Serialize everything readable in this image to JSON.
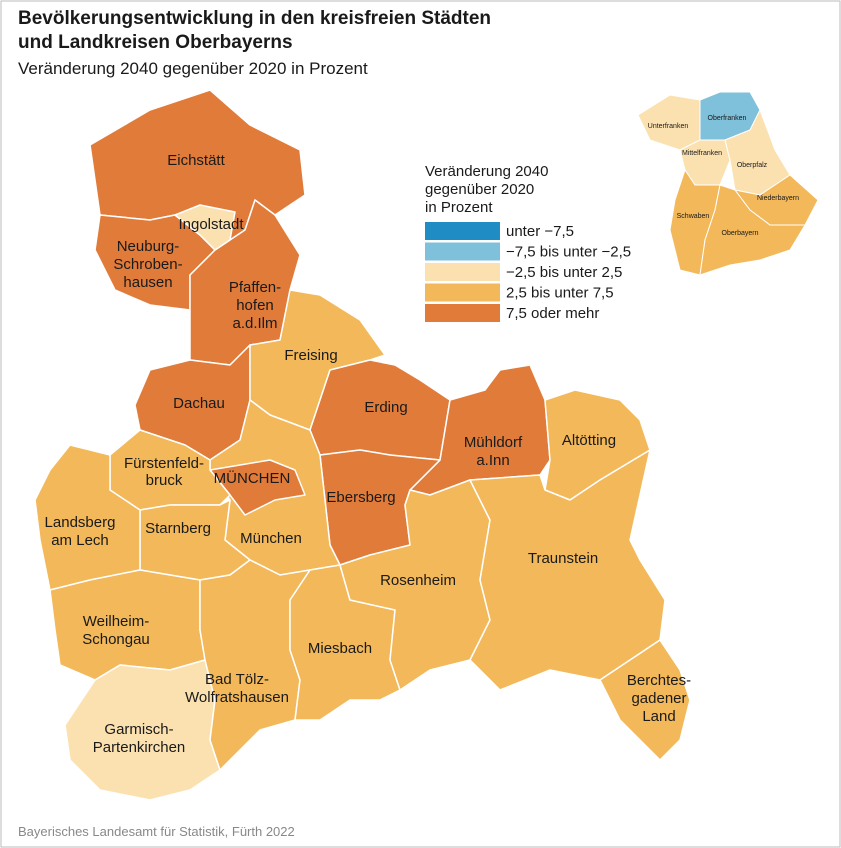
{
  "header": {
    "title": [
      "Bevölkerungsentwicklung in den kreisfreien Städten",
      "und Landkreisen Oberbayerns"
    ],
    "subtitle": "Veränderung 2040 gegenüber 2020 in Prozent"
  },
  "legend": {
    "title": [
      "Veränderung 2040",
      "gegenüber 2020",
      "in Prozent"
    ],
    "items": [
      {
        "label": "unter  −7,5",
        "color": "#1f8cc4"
      },
      {
        "label": "−7,5 bis unter −2,5",
        "color": "#7fc0da"
      },
      {
        "label": "−2,5 bis unter  2,5",
        "color": "#fbe1b0"
      },
      {
        "label": "2,5 bis unter  7,5",
        "color": "#f2b85a"
      },
      {
        "label": "7,5 oder mehr",
        "color": "#e07b3a"
      }
    ]
  },
  "regions": [
    {
      "label": [
        "Eichstätt"
      ],
      "class": 4
    },
    {
      "label": [
        "Neuburg-",
        "Schroben-",
        "hausen"
      ],
      "class": 4
    },
    {
      "label": [
        "Pfaffen-",
        "hofen",
        "a.d.Ilm"
      ],
      "class": 4
    },
    {
      "label": [
        "Ingolstadt"
      ],
      "class": 2
    },
    {
      "label": [
        "Dachau"
      ],
      "class": 4
    },
    {
      "label": [
        "Freising"
      ],
      "class": 3
    },
    {
      "label": [
        "Erding"
      ],
      "class": 4
    },
    {
      "label": [
        "Mühldorf",
        "a.Inn"
      ],
      "class": 4
    },
    {
      "label": [
        "Altötting"
      ],
      "class": 3
    },
    {
      "label": [
        "Ebersberg"
      ],
      "class": 4
    },
    {
      "label": [
        "München"
      ],
      "class": 3
    },
    {
      "label": [
        "MÜNCHEN"
      ],
      "class": 4
    },
    {
      "label": [
        "Fürstenfeld-",
        "bruck"
      ],
      "class": 3
    },
    {
      "label": [
        "Starnberg"
      ],
      "class": 3
    },
    {
      "label": [
        "Landsberg",
        "am Lech"
      ],
      "class": 3
    },
    {
      "label": [
        "Weilheim-",
        "Schongau"
      ],
      "class": 3
    },
    {
      "label": [
        "Garmisch-",
        "Partenkirchen"
      ],
      "class": 2
    },
    {
      "label": [
        "Bad Tölz-",
        "Wolfratshausen"
      ],
      "class": 3
    },
    {
      "label": [
        "Miesbach"
      ],
      "class": 3
    },
    {
      "label": [
        "Rosenheim"
      ],
      "class": 3
    },
    {
      "label": [
        "Traunstein"
      ],
      "class": 3
    },
    {
      "label": [
        "Berchtes-",
        "gadener",
        "Land"
      ],
      "class": 3
    }
  ],
  "inset": [
    {
      "label": "Unterfranken",
      "class": 2
    },
    {
      "label": "Oberfranken",
      "class": 1
    },
    {
      "label": "Mittelfranken",
      "class": 2
    },
    {
      "label": "Oberpfalz",
      "class": 2
    },
    {
      "label": "Niederbayern",
      "class": 3
    },
    {
      "label": "Schwaben",
      "class": 3
    },
    {
      "label": "Oberbayern",
      "class": 3
    }
  ],
  "source": "Bayerisches Landesamt für Statistik, Fürth 2022"
}
